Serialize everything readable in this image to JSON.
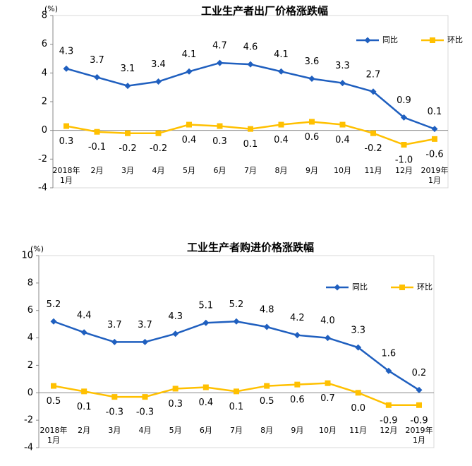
{
  "chart_data": [
    {
      "type": "line",
      "title": "工业生产者出厂价格涨跌幅",
      "y_label": "(%)",
      "categories": [
        "2018年\n1月",
        "2月",
        "3月",
        "4月",
        "5月",
        "6月",
        "7月",
        "8月",
        "9月",
        "10月",
        "11月",
        "12月",
        "2019年\n1月"
      ],
      "series": [
        {
          "name": "同比",
          "color": "#1f5fbf",
          "marker": "diamond",
          "label_position": "above",
          "values": [
            4.3,
            3.7,
            3.1,
            3.4,
            4.1,
            4.7,
            4.6,
            4.1,
            3.6,
            3.3,
            2.7,
            0.9,
            0.1
          ],
          "value_labels": [
            "4.3",
            "3.7",
            "3.1",
            "3.4",
            "4.1",
            "4.7",
            "4.6",
            "4.1",
            "3.6",
            "3.3",
            "2.7",
            "0.9",
            "0.1"
          ]
        },
        {
          "name": "环比",
          "color": "#ffc000",
          "marker": "square",
          "label_position": "below",
          "values": [
            0.3,
            -0.1,
            -0.2,
            -0.2,
            0.4,
            0.3,
            0.1,
            0.4,
            0.6,
            0.4,
            -0.2,
            -1.0,
            -0.6
          ],
          "value_labels": [
            "0.3",
            "-0.1",
            "-0.2",
            "-0.2",
            "0.4",
            "0.3",
            "0.1",
            "0.4",
            "0.6",
            "0.4",
            "-0.2",
            "-1.0",
            "-0.6"
          ]
        }
      ],
      "ylim": [
        -4,
        8
      ],
      "yticks": [
        -4,
        -2,
        0,
        2,
        4,
        6,
        8
      ],
      "legend": "upper right"
    },
    {
      "type": "line",
      "title": "工业生产者购进价格涨跌幅",
      "y_label": "(%)",
      "categories": [
        "2018年\n1月",
        "2月",
        "3月",
        "4月",
        "5月",
        "6月",
        "7月",
        "8月",
        "9月",
        "10月",
        "11月",
        "12月",
        "2019年\n1月"
      ],
      "series": [
        {
          "name": "同比",
          "color": "#1f5fbf",
          "marker": "diamond",
          "label_position": "above",
          "values": [
            5.2,
            4.4,
            3.7,
            3.7,
            4.3,
            5.1,
            5.2,
            4.8,
            4.2,
            4.0,
            3.3,
            1.6,
            0.2
          ],
          "value_labels": [
            "5.2",
            "4.4",
            "3.7",
            "3.7",
            "4.3",
            "5.1",
            "5.2",
            "4.8",
            "4.2",
            "4.0",
            "3.3",
            "1.6",
            "0.2"
          ]
        },
        {
          "name": "环比",
          "color": "#ffc000",
          "marker": "square",
          "label_position": "below",
          "values": [
            0.5,
            0.1,
            -0.3,
            -0.3,
            0.3,
            0.4,
            0.1,
            0.5,
            0.6,
            0.7,
            0.0,
            -0.9,
            -0.9
          ],
          "value_labels": [
            "0.5",
            "0.1",
            "-0.3",
            "-0.3",
            "0.3",
            "0.4",
            "0.1",
            "0.5",
            "0.6",
            "0.7",
            "0.0",
            "-0.9",
            "-0.9"
          ]
        }
      ],
      "ylim": [
        -4,
        10
      ],
      "yticks": [
        -4,
        -2,
        0,
        2,
        4,
        6,
        8,
        10
      ],
      "legend": "upper right"
    }
  ]
}
